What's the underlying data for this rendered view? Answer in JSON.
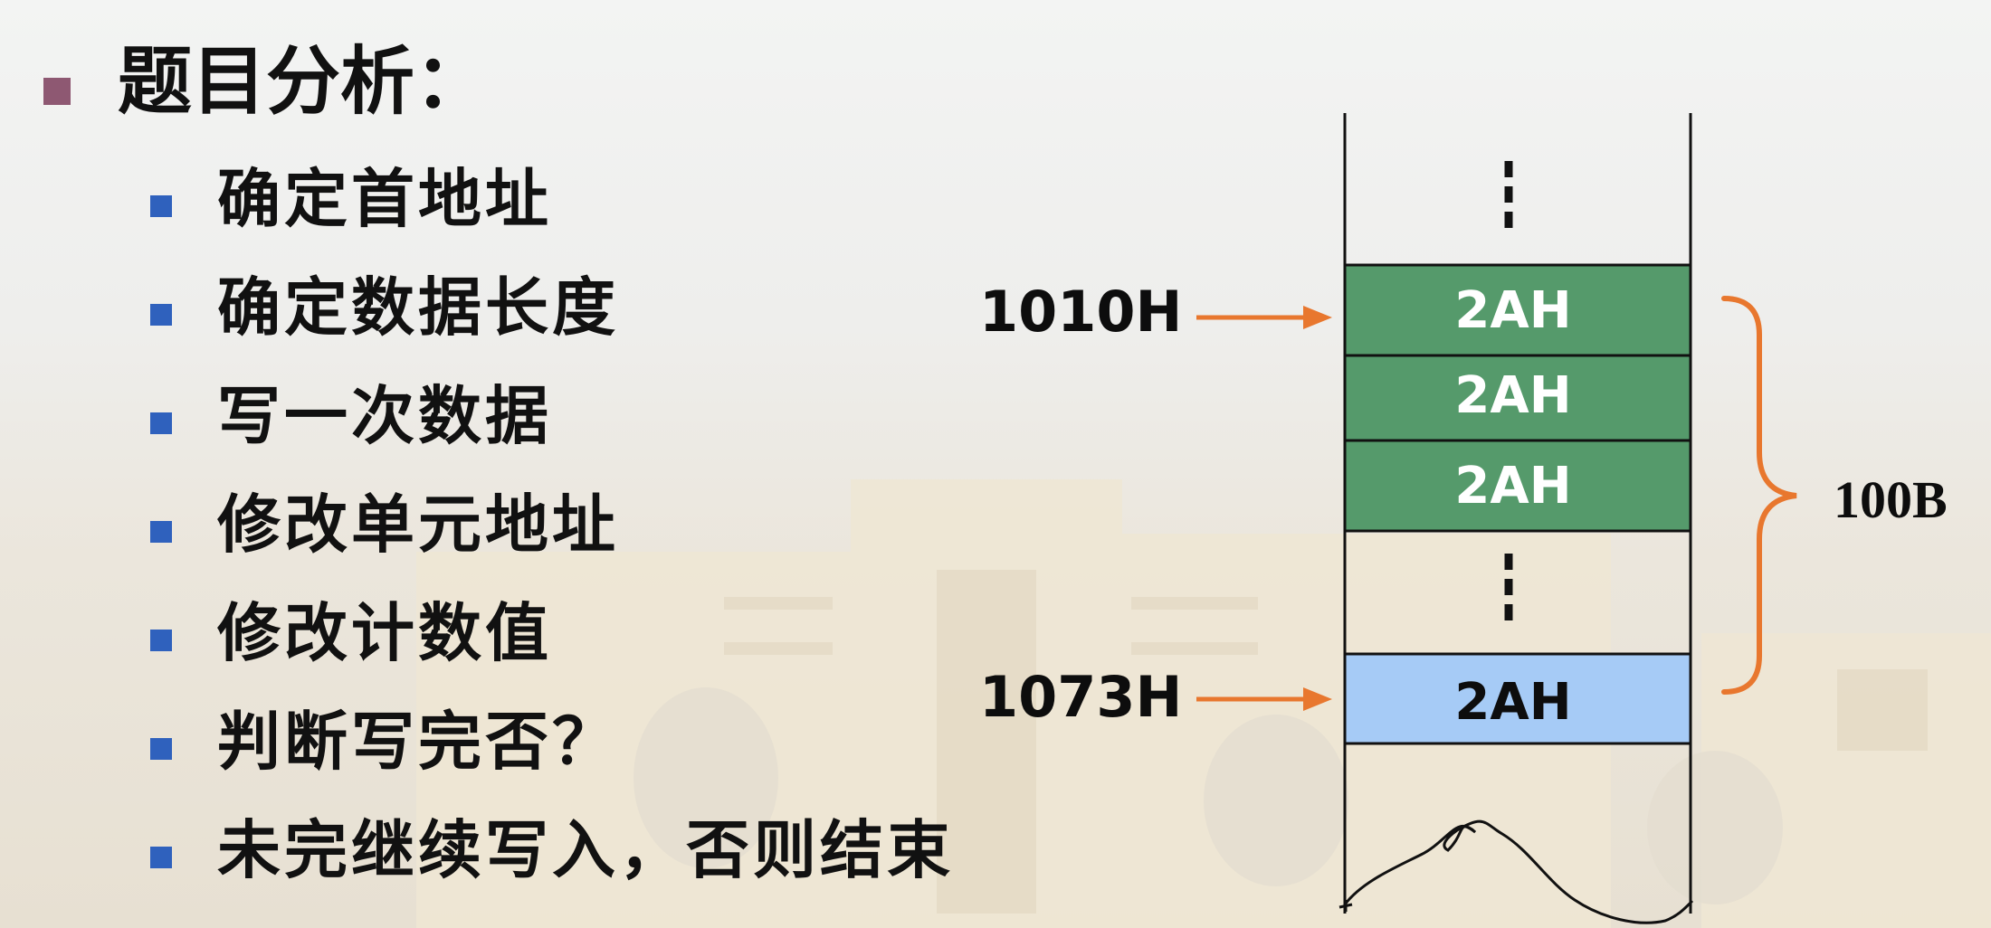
{
  "title": "题目分析：",
  "steps": [
    "确定首地址",
    "确定数据长度",
    "写一次数据",
    "修改单元地址",
    "修改计数值",
    "判断写完否？",
    "未完继续写入，否则结束"
  ],
  "memory": {
    "start_address": "1010H",
    "end_address": "1073H",
    "cell_value": "2AH",
    "block_size": "100B",
    "cell_fill_green": "#559a6b",
    "cell_fill_blue": "#a6cbf6",
    "arrow_color": "#e8772e",
    "brace_color": "#e8772e"
  }
}
